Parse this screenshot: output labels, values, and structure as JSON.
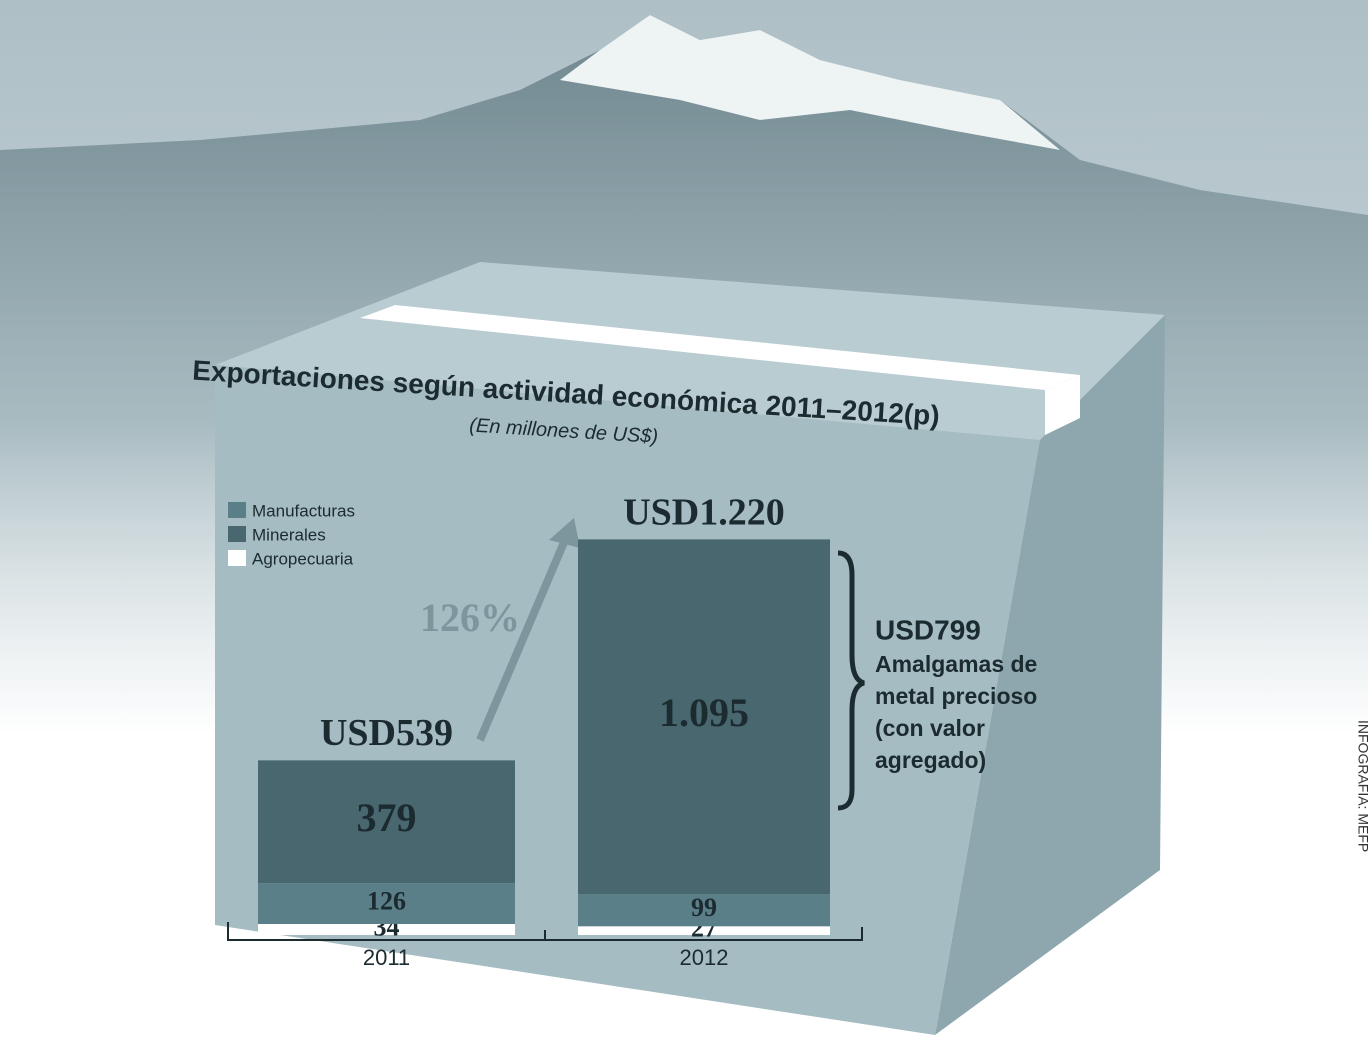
{
  "chart_data": {
    "type": "bar",
    "stacked": true,
    "title": "Exportaciones según actividad económica  2011–2012(p)",
    "subtitle": "(En millones de US$)",
    "categories": [
      "2011",
      "2012"
    ],
    "series": [
      {
        "name": "Manufacturas",
        "color": "#5b7f88",
        "values": [
          126,
          99
        ]
      },
      {
        "name": "Minerales",
        "color": "#48676f",
        "values": [
          379,
          1095
        ],
        "value_labels": [
          "379",
          "1.095"
        ]
      },
      {
        "name": "Agropecuaria",
        "color": "#ffffff",
        "values": [
          34,
          27
        ]
      }
    ],
    "totals": {
      "values": [
        539,
        1220
      ],
      "value_labels": [
        "USD539",
        "USD1.220"
      ]
    },
    "ylim": [
      0,
      1250
    ],
    "annotations": {
      "growth": "126%",
      "highlight_value": "USD799",
      "highlight_lines": [
        "Amalgamas de",
        "metal precioso",
        "(con valor",
        "agregado)"
      ]
    },
    "source": "INFOGRAFÍA: MEFP"
  }
}
